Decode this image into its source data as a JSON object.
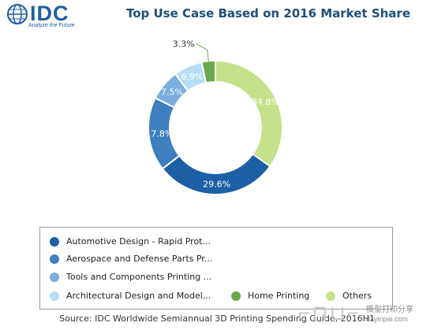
{
  "logo": {
    "text": "IDC",
    "tagline": "Analyze the Future"
  },
  "chart_data": {
    "type": "pie",
    "title": "Top Use Case Based on 2016 Market Share",
    "slices": [
      {
        "name": "Others",
        "value": 34.8,
        "label": "34.8%",
        "color": "#c5e08a"
      },
      {
        "name": "Automotive Design - Rapid Prot...",
        "value": 29.6,
        "label": "29.6%",
        "color": "#1d5fa4"
      },
      {
        "name": "Aerospace and Defense Parts Pr...",
        "value": 17.8,
        "label": "17.8%",
        "color": "#3d7fbf"
      },
      {
        "name": "Tools and Components Printing ...",
        "value": 7.5,
        "label": "7.5%",
        "color": "#79aee0"
      },
      {
        "name": "Architectural Design and Model...",
        "value": 6.9,
        "label": "6.9%",
        "color": "#b8dcf7"
      },
      {
        "name": "Home Printing",
        "value": 3.3,
        "label": "3.3%",
        "color": "#6aa64a"
      }
    ],
    "style": "donut",
    "legend_position": "bottom"
  },
  "legend": {
    "items": [
      {
        "label": "Automotive Design - Rapid Prot...",
        "color": "#1d5fa4"
      },
      {
        "label": "Aerospace and Defense Parts Pr...",
        "color": "#3d7fbf"
      },
      {
        "label": "Tools and Components Printing ...",
        "color": "#79aee0"
      },
      {
        "label": "Architectural Design and Model...",
        "color": "#b8dcf7"
      },
      {
        "label": "Home Printing",
        "color": "#6aa64a"
      },
      {
        "label": "Others",
        "color": "#c5e08a"
      }
    ]
  },
  "source": "Source: IDC Worldwide Semiannual 3D Printing Spending Guide, 2016H1",
  "watermark": {
    "text": "模型打印分享",
    "url": "dayinpai.com"
  }
}
